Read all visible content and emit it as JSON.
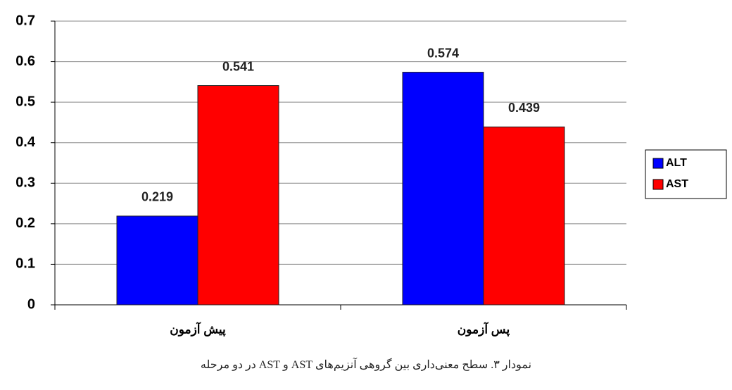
{
  "chart_data": {
    "type": "bar",
    "categories": [
      "پیش آزمون",
      "پس آزمون"
    ],
    "series": [
      {
        "name": "ALT",
        "color": "#0000ff",
        "values": [
          0.219,
          0.574
        ]
      },
      {
        "name": "AST",
        "color": "#ff0000",
        "values": [
          0.541,
          0.439
        ]
      }
    ],
    "ylim": [
      0,
      0.7
    ],
    "yticks": [
      0,
      0.1,
      0.2,
      0.3,
      0.4,
      0.5,
      0.6,
      0.7
    ],
    "grid": true,
    "legend": "right",
    "caption": "نمودار ۳. سطح معنی‌داری بین گروهی آنزیم‌های AST و AST در دو مرحله"
  }
}
